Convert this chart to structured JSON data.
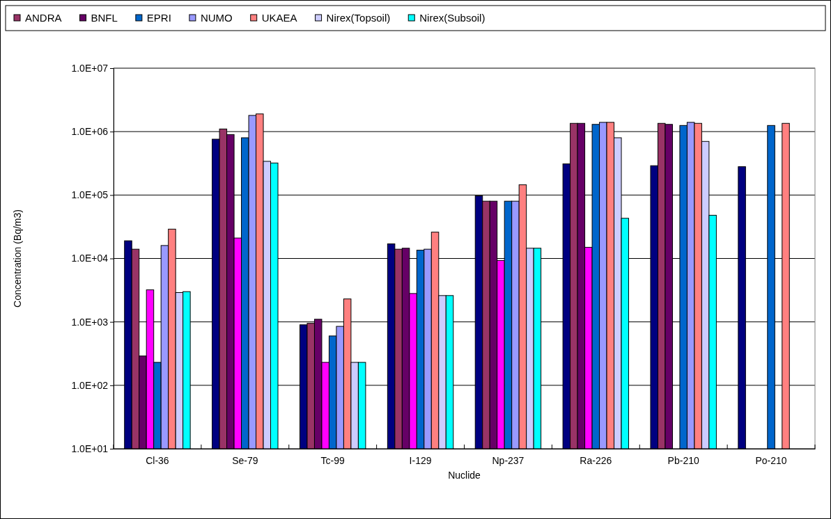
{
  "chart_data": {
    "type": "bar",
    "xlabel": "Nuclide",
    "ylabel": "Concentration (Bq/m3)",
    "log": "y",
    "grid": "y",
    "legend": "top",
    "categories": [
      "Cl-36",
      "Se-79",
      "Tc-99",
      "I-129",
      "Np-237",
      "Ra-226",
      "Pb-210",
      "Po-210"
    ],
    "ylim": [
      10,
      10000000
    ],
    "yticks": [
      {
        "value": 10,
        "label": "1.0E+01"
      },
      {
        "value": 100,
        "label": "1.0E+02"
      },
      {
        "value": 1000,
        "label": "1.0E+03"
      },
      {
        "value": 10000,
        "label": "1.0E+04"
      },
      {
        "value": 100000,
        "label": "1.0E+05"
      },
      {
        "value": 1000000,
        "label": "1.0E+06"
      },
      {
        "value": 10000000,
        "label": "1.0E+07"
      }
    ],
    "series": [
      {
        "color": "#000080",
        "values": [
          19000,
          760000,
          900,
          17000,
          97000,
          310000,
          290000,
          280000
        ]
      },
      {
        "name": "ANDRA",
        "color": "#993366",
        "values": [
          14000,
          1100000,
          950,
          14000,
          80000,
          1350000,
          1350000,
          null
        ]
      },
      {
        "name": "BNFL",
        "color": "#660066",
        "values": [
          290,
          900000,
          1100,
          14500,
          80000,
          1350000,
          1300000,
          null
        ]
      },
      {
        "color": "#ff00ff",
        "values": [
          3200,
          21000,
          230,
          2800,
          9300,
          15000,
          null,
          null
        ]
      },
      {
        "name": "EPRI",
        "color": "#0066cc",
        "values": [
          230,
          800000,
          600,
          13500,
          80000,
          1300000,
          1250000,
          1250000
        ]
      },
      {
        "name": "NUMO",
        "color": "#9999ff",
        "values": [
          16000,
          1800000,
          850,
          14000,
          80000,
          1400000,
          1400000,
          null
        ]
      },
      {
        "name": "UKAEA",
        "color": "#ff8080",
        "values": [
          29000,
          1900000,
          2300,
          26000,
          145000,
          1400000,
          1350000,
          1350000
        ]
      },
      {
        "name": "Nirex(Topsoil)",
        "color": "#ccccff",
        "values": [
          2900,
          340000,
          230,
          2600,
          14500,
          800000,
          700000,
          null
        ]
      },
      {
        "name": "Nirex(Subsoil)",
        "color": "#00ffff",
        "values": [
          3000,
          320000,
          230,
          2600,
          14500,
          43000,
          48000,
          null
        ]
      }
    ]
  }
}
